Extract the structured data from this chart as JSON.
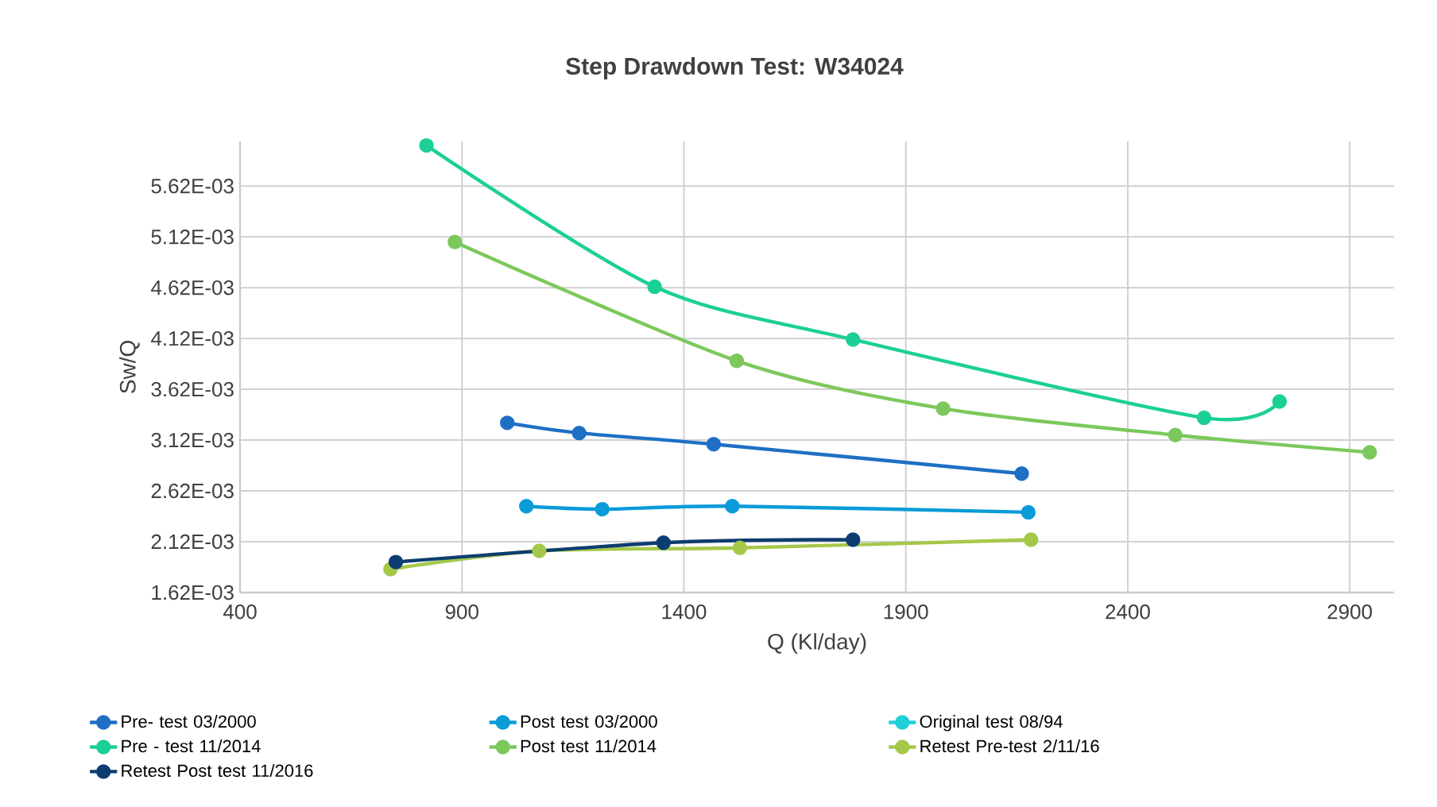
{
  "chart_data": {
    "type": "line",
    "title": "Step Drawdown Test: W34024",
    "xlabel": "Q (Kl/day)",
    "ylabel": "Sw/Q",
    "xlim": [
      400,
      3000
    ],
    "xticks": [
      400,
      900,
      1400,
      1900,
      2400,
      2900
    ],
    "ylim": [
      0.00162,
      0.00606
    ],
    "yticks": [
      {
        "value": 0.00162,
        "label": "1.62E-03"
      },
      {
        "value": 0.00212,
        "label": "2.12E-03"
      },
      {
        "value": 0.00262,
        "label": "2.62E-03"
      },
      {
        "value": 0.00312,
        "label": "3.12E-03"
      },
      {
        "value": 0.00362,
        "label": "3.62E-03"
      },
      {
        "value": 0.00412,
        "label": "4.12E-03"
      },
      {
        "value": 0.00462,
        "label": "4.62E-03"
      },
      {
        "value": 0.00512,
        "label": "5.12E-03"
      },
      {
        "value": 0.00562,
        "label": "5.62E-03"
      }
    ],
    "grid": true,
    "legend": "bottom",
    "marker": "circle",
    "line_style": "solid",
    "series": [
      {
        "name": "Pre- test 03/2000",
        "color": "#1f6fc5",
        "x": [
          1002,
          1164,
          1467,
          2161
        ],
        "values": [
          0.00329,
          0.00319,
          0.00308,
          0.00279
        ]
      },
      {
        "name": "Post test 03/2000",
        "color": "#0a9bd8",
        "x": [
          1045,
          1216,
          1509,
          2176
        ],
        "values": [
          0.00247,
          0.00244,
          0.00247,
          0.00241
        ]
      },
      {
        "name": "Original test 08/94",
        "color": "#1fd0d8"
      },
      {
        "name": "Pre - test 11/2014",
        "color": "#1ccf97",
        "x": [
          820,
          1334,
          1781,
          2572,
          2742
        ],
        "values": [
          0.00602,
          0.00463,
          0.00411,
          0.00334,
          0.0035
        ]
      },
      {
        "name": "Post test 11/2014",
        "color": "#7cc85c",
        "x": [
          884,
          1519,
          1984,
          2507,
          2945
        ],
        "values": [
          0.00507,
          0.0039,
          0.00343,
          0.00317,
          0.003
        ]
      },
      {
        "name": "Retest Pre-test 2/11/16",
        "color": "#a5c84a",
        "x": [
          739,
          1074,
          1526,
          2182
        ],
        "values": [
          0.00185,
          0.00203,
          0.00206,
          0.00214
        ]
      },
      {
        "name": "Retest Post test 11/2016",
        "color": "#0d3d70",
        "x": [
          751,
          1354,
          1781
        ],
        "values": [
          0.00192,
          0.00211,
          0.00214
        ]
      }
    ]
  }
}
